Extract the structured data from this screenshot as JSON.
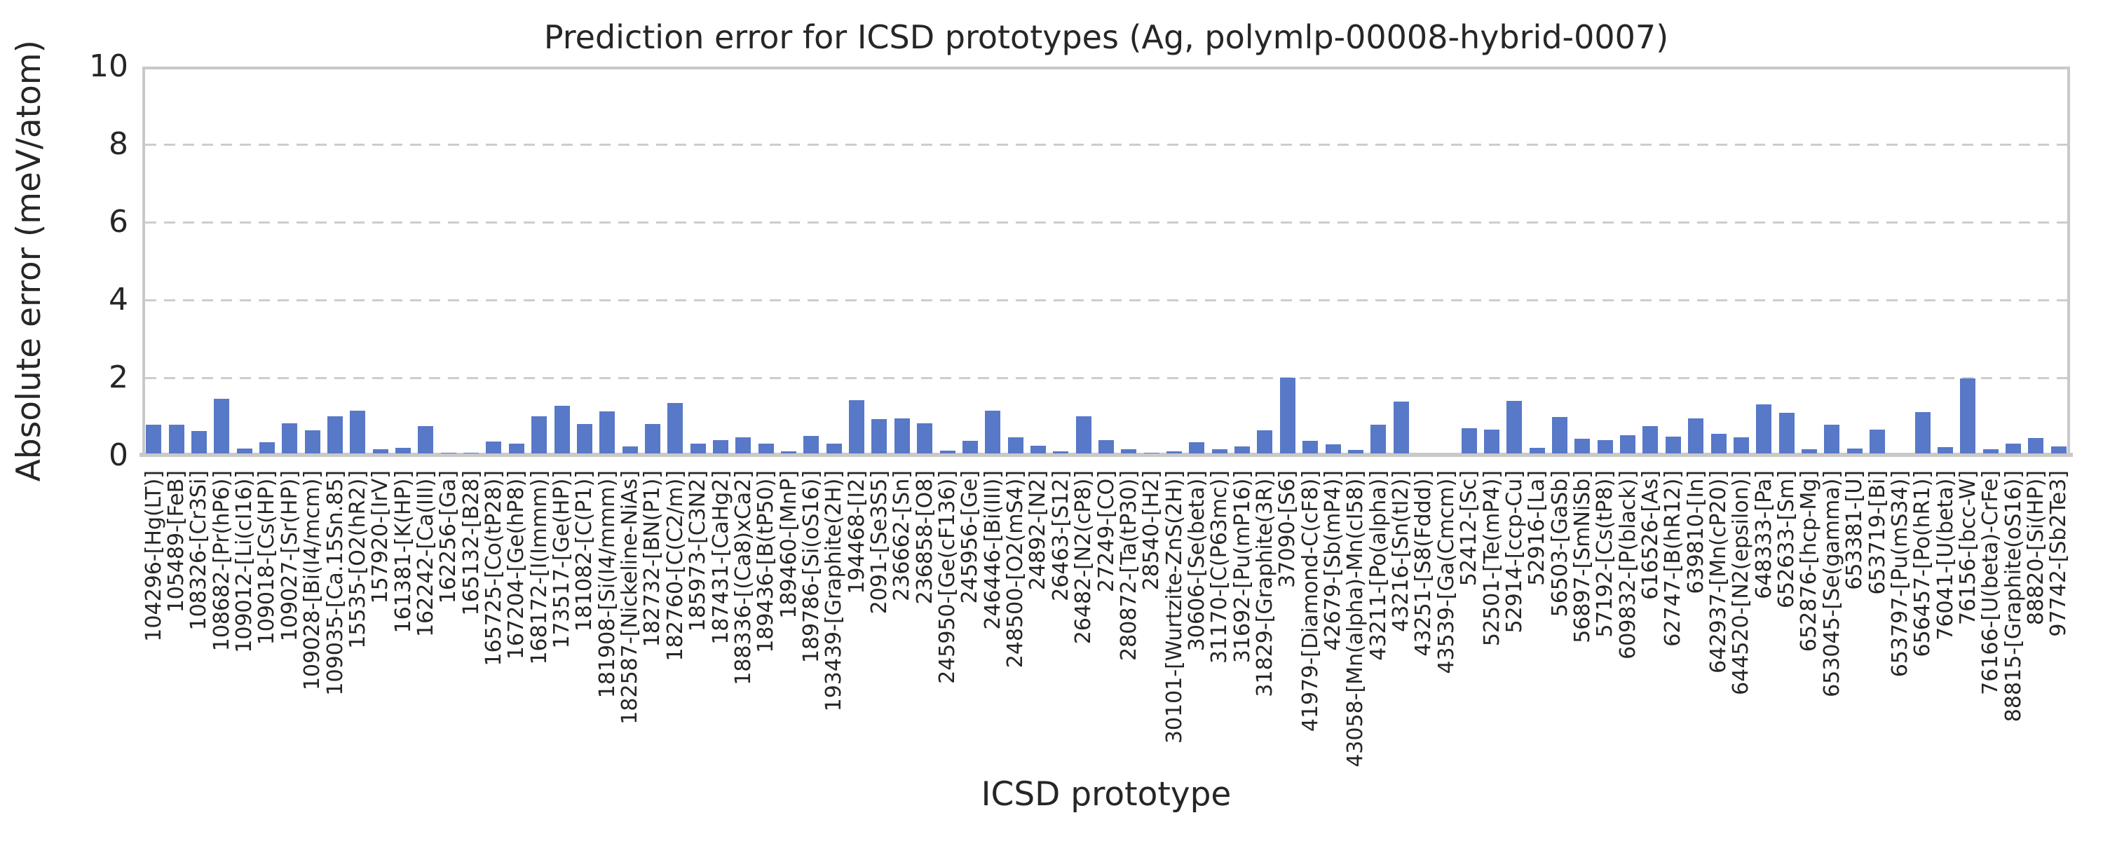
{
  "title": "Prediction error for ICSD prototypes (Ag, polymlp-00008-hybrid-0007)",
  "colors": {
    "bar": "#5878c8",
    "grid": "#cdcdcd",
    "spine": "#c9c9c9",
    "text": "#262626",
    "background": "#ffffff"
  },
  "chart_data": {
    "type": "bar",
    "title": "Prediction error for ICSD prototypes (Ag, polymlp-00008-hybrid-0007)",
    "xlabel": "ICSD prototype",
    "ylabel": "Absolute error (meV/atom)",
    "ylim": [
      0,
      10
    ],
    "yticks": [
      0,
      2,
      4,
      6,
      8,
      10
    ],
    "grid": "horizontal dashed at 2,4,6,8",
    "legend": "none",
    "bar_color": "#5878c8",
    "categories": [
      "104296-[Hg(LT)]",
      "105489-[FeB]",
      "108326-[Cr3Si]",
      "108682-[Pr(hP6)]",
      "109012-[Li(cI16)]",
      "109018-[Cs(HP)]",
      "109027-[Sr(HP)]",
      "109028-[Bi(I4/mcm)]",
      "109035-[Ca.15Sn.85]",
      "15535-[O2(hR2)]",
      "157920-[IrV]",
      "161381-[K(HP)]",
      "162242-[Ca(III)]",
      "162256-[Ga]",
      "165132-[B28]",
      "165725-[Co(tP28)]",
      "167204-[Ge(hP8)]",
      "168172-[I(Immm)]",
      "173517-[Ge(HP)]",
      "181082-[C(P1)]",
      "181908-[Si(I4/mmm)]",
      "182587-[Nickeline-NiAs]",
      "182732-[BN(P1)]",
      "182760-[C(C2/m)]",
      "185973-[C3N2]",
      "187431-[CaHg2]",
      "188336-[(Ca8)xCa2]",
      "189436-[B(tP50)]",
      "189460-[MnP]",
      "189786-[Si(oS16)]",
      "193439-[Graphite(2H)]",
      "194468-[I2]",
      "2091-[Se3S5]",
      "236662-[Sn]",
      "236858-[O8]",
      "245950-[Ge(cF136)]",
      "245956-[Ge]",
      "246446-[Bi(III)]",
      "248500-[O2(mS4)]",
      "24892-[N2]",
      "26463-[S12]",
      "26482-[N2(cP8)]",
      "27249-[CO]",
      "280872-[Ta(tP30)]",
      "28540-[H2]",
      "30101-[Wurtzite-ZnS(2H)]",
      "30606-[Se(beta)]",
      "31170-[C(P63mc)]",
      "31692-[Pu(mP16)]",
      "31829-[Graphite(3R)]",
      "37090-[S6]",
      "41979-[Diamond-C(cF8)]",
      "42679-[Sb(mP4)]",
      "43058-[Mn(alpha)-Mn(cI58)]",
      "43211-[Po(alpha)]",
      "43216-[Sn(tI2)]",
      "43251-[S8(Fddd)]",
      "43539-[Ga(Cmcm)]",
      "52412-[Sc]",
      "52501-[Te(mP4)]",
      "52914-[ccp-Cu]",
      "52916-[La]",
      "56503-[GaSb]",
      "56897-[SmNiSb]",
      "57192-[Cs(tP8)]",
      "609832-[P(black)]",
      "616526-[As]",
      "62747-[B(hR12)]",
      "639810-[In]",
      "642937-[Mn(cP20)]",
      "644520-[N2(epsilon)]",
      "648333-[Pa]",
      "652633-[Sm]",
      "652876-[hcp-Mg]",
      "653045-[Se(gamma)]",
      "653381-[U]",
      "653719-[Bi]",
      "653797-[Pu(mS34)]",
      "656457-[Po(hR1)]",
      "76041-[U(beta)]",
      "76156-[bcc-W]",
      "76166-[U(beta)-CrFe]",
      "88815-[Graphite(oS16)]",
      "88820-[Si(HP)]",
      "97742-[Sb2Te3]"
    ],
    "values": [
      0.73,
      0.73,
      0.58,
      1.4,
      0.13,
      0.28,
      0.78,
      0.6,
      0.95,
      1.1,
      0.11,
      0.14,
      0.7,
      0.01,
      0.02,
      0.3,
      0.26,
      0.96,
      1.23,
      0.75,
      1.08,
      0.18,
      0.76,
      1.29,
      0.26,
      0.34,
      0.42,
      0.26,
      0.05,
      0.45,
      0.26,
      1.37,
      0.89,
      0.9,
      0.77,
      0.07,
      0.32,
      1.1,
      0.42,
      0.2,
      0.06,
      0.96,
      0.35,
      0.1,
      0.01,
      0.05,
      0.29,
      0.11,
      0.18,
      0.59,
      1.94,
      0.33,
      0.24,
      0.09,
      0.73,
      1.33,
      0.0,
      0.0,
      0.65,
      0.62,
      1.35,
      0.15,
      0.94,
      0.38,
      0.34,
      0.47,
      0.71,
      0.44,
      0.9,
      0.51,
      0.41,
      1.27,
      1.04,
      0.1,
      0.73,
      0.13,
      0.61,
      0.0,
      1.07,
      0.17,
      1.93,
      0.11,
      0.25,
      0.4,
      0.18
    ]
  }
}
